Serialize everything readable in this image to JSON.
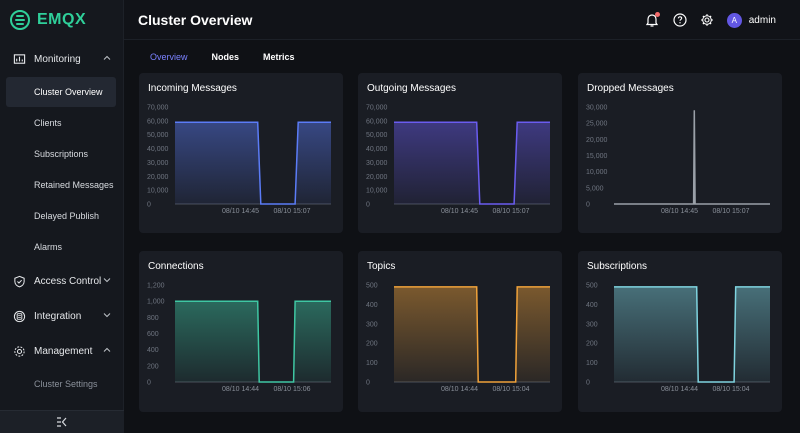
{
  "app": {
    "name": "EMQX"
  },
  "header": {
    "title": "Cluster Overview",
    "user": "admin",
    "avatar_letter": "A"
  },
  "sidebar": {
    "groups": [
      {
        "label": "Monitoring",
        "expanded": true
      },
      {
        "label": "Access Control",
        "expanded": false
      },
      {
        "label": "Integration",
        "expanded": false
      },
      {
        "label": "Management",
        "expanded": true
      }
    ],
    "monitoring_items": [
      "Cluster Overview",
      "Clients",
      "Subscriptions",
      "Retained Messages",
      "Delayed Publish",
      "Alarms"
    ],
    "management_items": [
      "Cluster Settings"
    ],
    "active_item": "Cluster Overview"
  },
  "tabs": [
    {
      "label": "Overview",
      "active": true
    },
    {
      "label": "Nodes",
      "active": false
    },
    {
      "label": "Metrics",
      "active": false
    }
  ],
  "colors": {
    "accent": "#7b82ff",
    "brand": "#2fcf9a",
    "notification": "#f56c6c"
  },
  "chart_data": [
    {
      "type": "area",
      "title": "Incoming Messages",
      "color": "#5b7cf7",
      "y_ticks": [
        "70,000",
        "60,000",
        "50,000",
        "40,000",
        "30,000",
        "20,000",
        "10,000",
        "0"
      ],
      "ylim": [
        0,
        70000
      ],
      "x_ticks": [
        "08/10 14:45",
        "08/10 15:07"
      ],
      "series": [
        {
          "x": [
            0,
            0.53,
            0.55,
            0.77,
            0.79,
            1
          ],
          "values": [
            59000,
            59000,
            0,
            0,
            59000,
            59000
          ]
        }
      ]
    },
    {
      "type": "area",
      "title": "Outgoing Messages",
      "color": "#6a5cf0",
      "y_ticks": [
        "70,000",
        "60,000",
        "50,000",
        "40,000",
        "30,000",
        "20,000",
        "10,000",
        "0"
      ],
      "ylim": [
        0,
        70000
      ],
      "x_ticks": [
        "08/10 14:45",
        "08/10 15:07"
      ],
      "series": [
        {
          "x": [
            0,
            0.53,
            0.55,
            0.77,
            0.79,
            1
          ],
          "values": [
            59000,
            59000,
            0,
            0,
            59000,
            59000
          ]
        }
      ]
    },
    {
      "type": "line",
      "title": "Dropped Messages",
      "color": "#9aa0a8",
      "y_ticks": [
        "30,000",
        "25,000",
        "20,000",
        "15,000",
        "10,000",
        "5,000",
        "0"
      ],
      "ylim": [
        0,
        30000
      ],
      "x_ticks": [
        "08/10 14:45",
        "08/10 15:07"
      ],
      "series": [
        {
          "x": [
            0,
            0.51,
            0.515,
            0.52,
            1
          ],
          "values": [
            0,
            0,
            29000,
            0,
            0
          ]
        }
      ]
    },
    {
      "type": "area",
      "title": "Connections",
      "color": "#3fc7a3",
      "y_ticks": [
        "1,200",
        "1,000",
        "800",
        "600",
        "400",
        "200",
        "0"
      ],
      "ylim": [
        0,
        1200
      ],
      "x_ticks": [
        "08/10 14:44",
        "08/10 15:06"
      ],
      "series": [
        {
          "x": [
            0,
            0.53,
            0.54,
            0.76,
            0.77,
            1
          ],
          "values": [
            1000,
            1000,
            0,
            0,
            1000,
            1000
          ]
        }
      ]
    },
    {
      "type": "area",
      "title": "Topics",
      "color": "#f0a23a",
      "y_ticks": [
        "500",
        "400",
        "300",
        "200",
        "100",
        "0"
      ],
      "ylim": [
        0,
        500
      ],
      "x_ticks": [
        "08/10 14:44",
        "08/10 15:04"
      ],
      "series": [
        {
          "x": [
            0,
            0.53,
            0.54,
            0.78,
            0.79,
            1
          ],
          "values": [
            490,
            490,
            0,
            0,
            490,
            490
          ]
        }
      ]
    },
    {
      "type": "area",
      "title": "Subscriptions",
      "color": "#7fd4e0",
      "y_ticks": [
        "500",
        "400",
        "300",
        "200",
        "100",
        "0"
      ],
      "ylim": [
        0,
        500
      ],
      "x_ticks": [
        "08/10 14:44",
        "08/10 15:04"
      ],
      "series": [
        {
          "x": [
            0,
            0.53,
            0.54,
            0.77,
            0.78,
            1
          ],
          "values": [
            490,
            490,
            0,
            0,
            490,
            490
          ]
        }
      ]
    }
  ]
}
